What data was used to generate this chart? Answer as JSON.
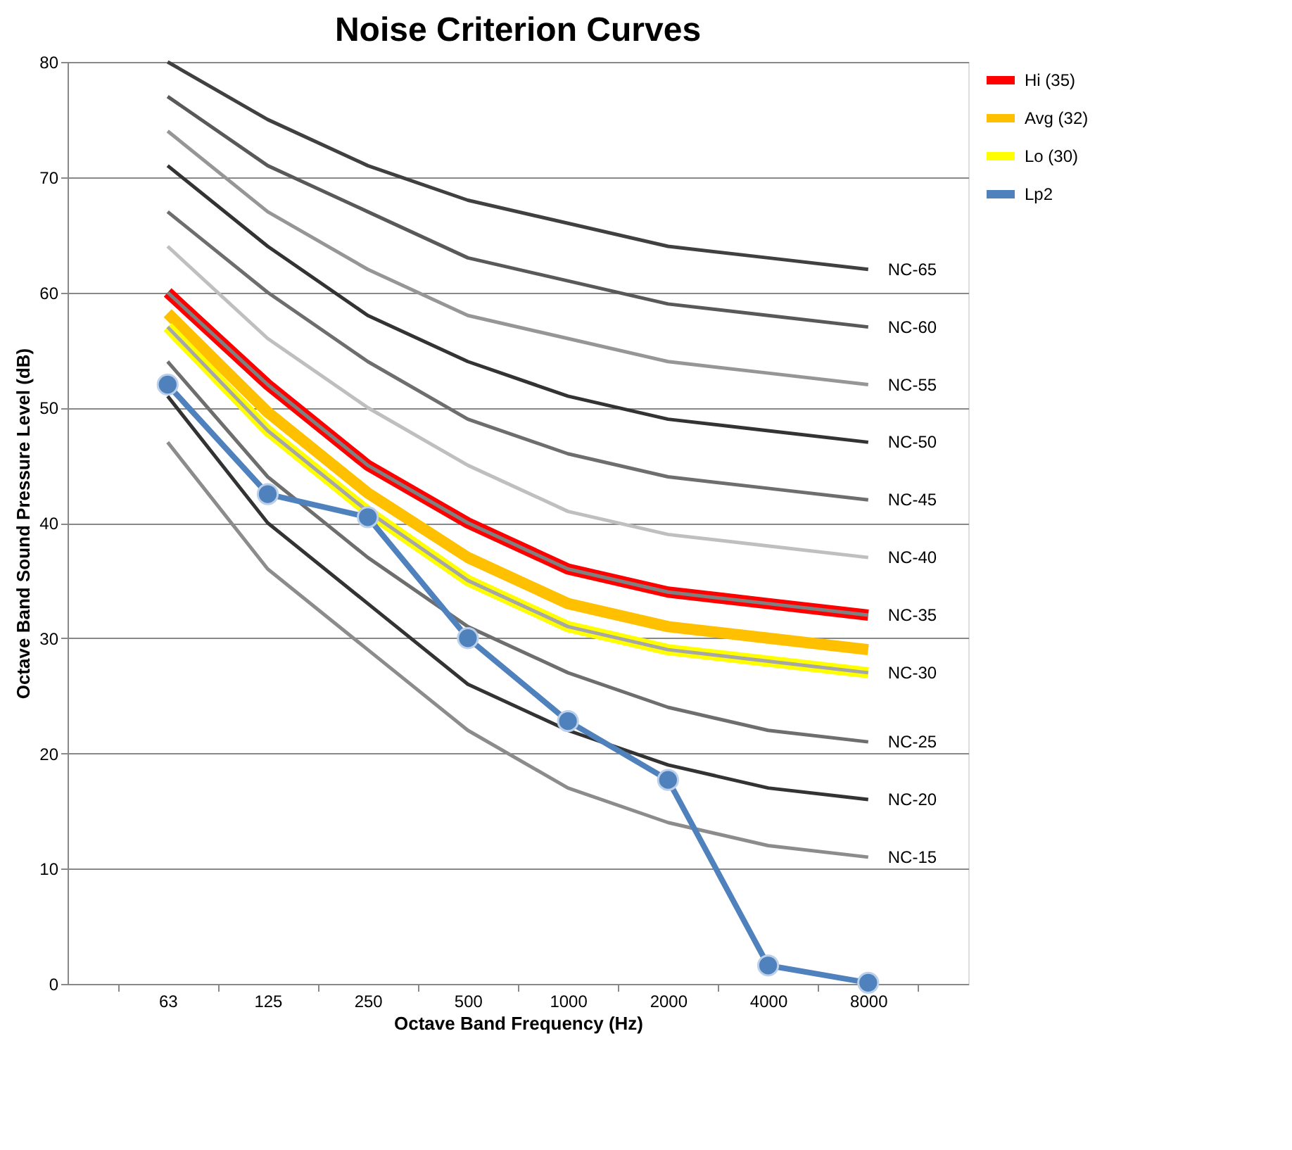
{
  "chart_data": {
    "type": "line",
    "title": "Noise Criterion Curves",
    "xlabel": "Octave Band Frequency (Hz)",
    "ylabel": "Octave Band Sound Pressure Level (dB)",
    "categories": [
      "63",
      "125",
      "250",
      "500",
      "1000",
      "2000",
      "4000",
      "8000"
    ],
    "ylim": [
      0,
      80
    ],
    "yticks": [
      0,
      10,
      20,
      30,
      40,
      50,
      60,
      70,
      80
    ],
    "grid": "y",
    "legend": "top right",
    "line_style": "solid",
    "series": [
      {
        "name": "Hi (35)",
        "color": "#ff0000",
        "values": [
          60,
          52,
          45,
          40,
          36,
          34,
          33,
          32
        ]
      },
      {
        "name": "Avg (32)",
        "color": "#ffc000",
        "values": [
          58.2,
          49.6,
          42.6,
          37,
          33,
          31,
          30,
          29
        ]
      },
      {
        "name": "Lo (30)",
        "color": "#ffff00",
        "values": [
          57,
          48,
          41,
          35,
          31,
          29,
          28,
          27
        ]
      },
      {
        "name": "NC-65",
        "color": "#404040",
        "values": [
          80,
          75,
          71,
          68,
          66,
          64,
          63,
          62
        ]
      },
      {
        "name": "NC-60",
        "color": "#595959",
        "values": [
          77,
          71,
          67,
          63,
          61,
          59,
          58,
          57
        ]
      },
      {
        "name": "NC-55",
        "color": "#969696",
        "values": [
          74,
          67,
          62,
          58,
          56,
          54,
          53,
          52
        ]
      },
      {
        "name": "NC-50",
        "color": "#333333",
        "values": [
          71,
          64,
          58,
          54,
          51,
          49,
          48,
          47
        ]
      },
      {
        "name": "NC-45",
        "color": "#6e6e6e",
        "values": [
          67,
          60,
          54,
          49,
          46,
          44,
          43,
          42
        ]
      },
      {
        "name": "NC-40",
        "color": "#bfbfbf",
        "values": [
          64,
          56,
          50,
          45,
          41,
          39,
          38,
          37
        ]
      },
      {
        "name": "NC-35",
        "color": "#808080",
        "values": [
          60,
          52,
          45,
          40,
          36,
          34,
          33,
          32
        ]
      },
      {
        "name": "NC-30",
        "color": "#a6a6a6",
        "values": [
          57,
          48,
          41,
          35,
          31,
          29,
          28,
          27
        ]
      },
      {
        "name": "NC-25",
        "color": "#6e6e6e",
        "values": [
          54,
          44,
          37,
          31,
          27,
          24,
          22,
          21
        ]
      },
      {
        "name": "NC-20",
        "color": "#333333",
        "values": [
          51,
          40,
          33,
          26,
          22,
          19,
          17,
          16
        ]
      },
      {
        "name": "NC-15",
        "color": "#8c8c8c",
        "values": [
          47,
          36,
          29,
          22,
          17,
          14,
          12,
          11
        ]
      },
      {
        "name": "Lp2",
        "color": "#4f81bd",
        "marker": "circle",
        "values": [
          52,
          42.5,
          40.5,
          30,
          22.8,
          17.7,
          1.6,
          0.1
        ]
      }
    ]
  }
}
